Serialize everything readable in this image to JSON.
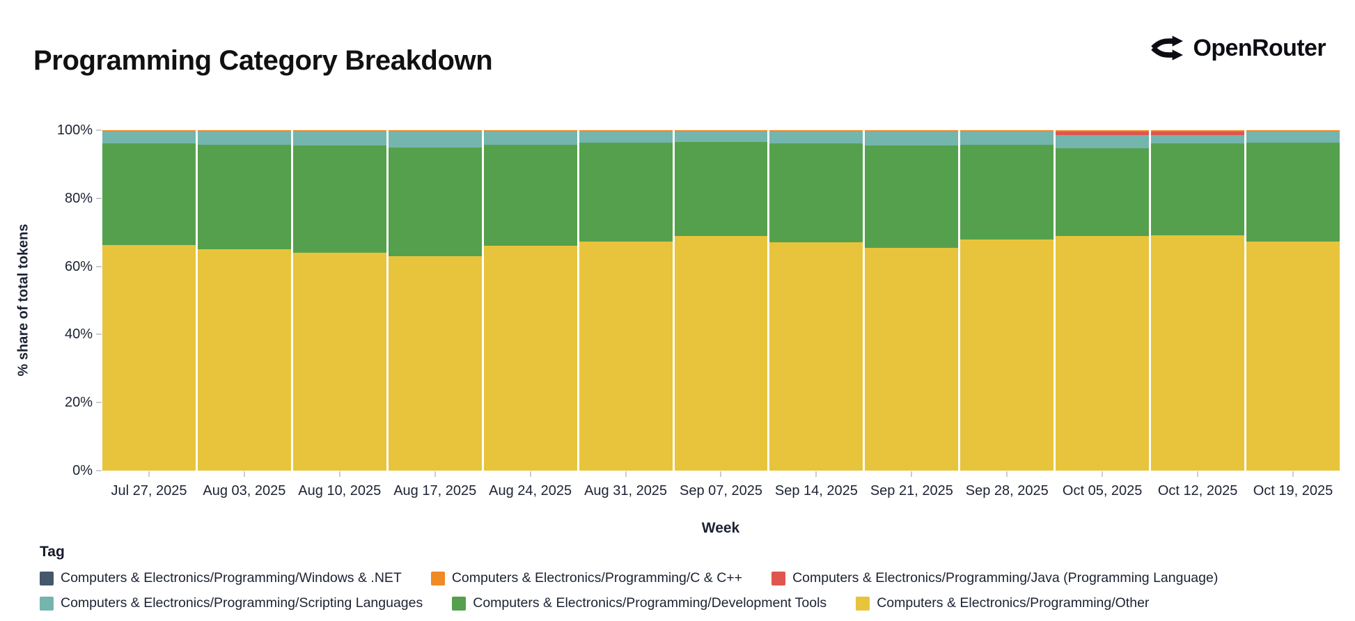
{
  "header": {
    "title": "Programming Category Breakdown",
    "brand": "OpenRouter"
  },
  "chart_data": {
    "type": "bar",
    "stacked": true,
    "title": "Programming Category Breakdown",
    "xlabel": "Week",
    "ylabel": "% share of total tokens",
    "ylim": [
      0,
      100
    ],
    "grid": false,
    "unit": "% of total tokens",
    "y_ticks": [
      "0%",
      "20%",
      "40%",
      "60%",
      "80%",
      "100%"
    ],
    "x": [
      "Jul 27, 2025",
      "Aug 03, 2025",
      "Aug 10, 2025",
      "Aug 17, 2025",
      "Aug 24, 2025",
      "Aug 31, 2025",
      "Sep 07, 2025",
      "Sep 14, 2025",
      "Sep 21, 2025",
      "Sep 28, 2025",
      "Oct 05, 2025",
      "Oct 12, 2025",
      "Oct 19, 2025"
    ],
    "series": [
      {
        "key": "other",
        "name": "Computers & Electronics/Programming/Other",
        "color": "#e8c43c",
        "values": [
          66.2,
          65.0,
          64.1,
          62.9,
          66.0,
          67.2,
          68.9,
          67.0,
          65.4,
          67.8,
          69.0,
          69.1,
          67.2
        ]
      },
      {
        "key": "devtools",
        "name": "Computers & Electronics/Programming/Development Tools",
        "color": "#55a04c",
        "values": [
          29.9,
          30.7,
          31.3,
          32.0,
          29.8,
          29.2,
          27.6,
          29.1,
          30.1,
          27.9,
          25.7,
          27.0,
          29.1
        ]
      },
      {
        "key": "scripting",
        "name": "Computers & Electronics/Programming/Scripting Languages",
        "color": "#74b5ae",
        "values": [
          3.4,
          3.8,
          4.1,
          4.6,
          3.7,
          3.1,
          3.0,
          3.4,
          4.0,
          3.8,
          3.8,
          2.4,
          3.2
        ]
      },
      {
        "key": "java",
        "name": "Computers & Electronics/Programming/Java (Programming Language)",
        "color": "#e0564f",
        "values": [
          0,
          0,
          0,
          0,
          0,
          0,
          0,
          0,
          0,
          0,
          1.0,
          1.0,
          0
        ]
      },
      {
        "key": "cpp",
        "name": "Computers & Electronics/Programming/C & C++",
        "color": "#f08a24",
        "values": [
          0.4,
          0.4,
          0.4,
          0.4,
          0.4,
          0.4,
          0.4,
          0.4,
          0.4,
          0.4,
          0.4,
          0.4,
          0.4
        ]
      },
      {
        "key": "windows",
        "name": "Computers & Electronics/Programming/Windows & .NET",
        "color": "#44576b",
        "pattern": "dots",
        "values": [
          0.1,
          0.1,
          0.1,
          0.1,
          0.1,
          0.1,
          0.1,
          0.1,
          0.1,
          0.1,
          0.1,
          0.1,
          0.1
        ]
      }
    ],
    "legend": {
      "title": "Tag",
      "position": "bottom",
      "rows": [
        [
          "windows",
          "cpp",
          "java"
        ],
        [
          "scripting",
          "devtools",
          "other"
        ]
      ]
    }
  }
}
